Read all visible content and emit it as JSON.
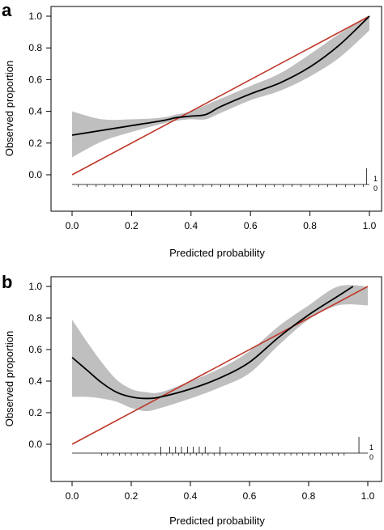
{
  "chart_data": [
    {
      "panel": "a",
      "type": "line",
      "xlabel": "Predicted probability",
      "ylabel": "Observed proportion",
      "xlim": [
        -0.07,
        1.02
      ],
      "ylim": [
        -0.12,
        1.02
      ],
      "xticks": [
        "0.0",
        "0.2",
        "0.4",
        "0.6",
        "0.8",
        "1.0"
      ],
      "yticks": [
        "0.0",
        "0.2",
        "0.4",
        "0.6",
        "0.8",
        "1.0"
      ],
      "reference_line": {
        "x": [
          0,
          1
        ],
        "y": [
          0,
          1
        ],
        "color": "#c0392b"
      },
      "calibration_curve": {
        "x": [
          0.0,
          0.1,
          0.2,
          0.3,
          0.35,
          0.4,
          0.45,
          0.5,
          0.6,
          0.7,
          0.8,
          0.9,
          1.0
        ],
        "y": [
          0.25,
          0.28,
          0.31,
          0.34,
          0.36,
          0.37,
          0.38,
          0.43,
          0.51,
          0.58,
          0.68,
          0.82,
          1.0
        ],
        "color": "#000000"
      },
      "confidence_band": {
        "x": [
          0.0,
          0.1,
          0.2,
          0.3,
          0.35,
          0.4,
          0.45,
          0.5,
          0.6,
          0.7,
          0.8,
          0.9,
          1.0
        ],
        "lower": [
          0.11,
          0.21,
          0.27,
          0.32,
          0.34,
          0.35,
          0.35,
          0.39,
          0.47,
          0.53,
          0.62,
          0.74,
          0.91
        ],
        "upper": [
          0.4,
          0.35,
          0.35,
          0.36,
          0.38,
          0.4,
          0.44,
          0.48,
          0.56,
          0.64,
          0.76,
          0.89,
          1.0
        ],
        "color": "#bfbfbf"
      },
      "rug_labels": [
        "1",
        "0"
      ],
      "rug": {
        "outcome_1_at": [
          0.99
        ],
        "outcome_0_at": [
          0.02,
          0.05,
          0.08,
          0.11,
          0.14,
          0.17,
          0.2,
          0.23,
          0.26,
          0.29,
          0.32,
          0.35,
          0.38,
          0.41,
          0.44,
          0.47,
          0.5,
          0.53,
          0.56,
          0.59,
          0.62,
          0.65,
          0.68,
          0.71,
          0.74,
          0.77,
          0.8,
          0.83,
          0.86,
          0.89,
          0.92,
          0.95,
          0.98
        ]
      }
    },
    {
      "panel": "b",
      "type": "line",
      "xlabel": "Predicted probability",
      "ylabel": "Observed proportion",
      "xlim": [
        -0.07,
        1.02
      ],
      "ylim": [
        -0.12,
        1.02
      ],
      "xticks": [
        "0.0",
        "0.2",
        "0.4",
        "0.6",
        "0.8",
        "1.0"
      ],
      "yticks": [
        "0.0",
        "0.2",
        "0.4",
        "0.6",
        "0.8",
        "1.0"
      ],
      "reference_line": {
        "x": [
          0,
          1
        ],
        "y": [
          0,
          1
        ],
        "color": "#c0392b"
      },
      "calibration_curve": {
        "x": [
          0.0,
          0.05,
          0.1,
          0.15,
          0.2,
          0.25,
          0.3,
          0.4,
          0.5,
          0.6,
          0.7,
          0.8,
          0.9,
          0.95
        ],
        "y": [
          0.55,
          0.47,
          0.39,
          0.33,
          0.3,
          0.29,
          0.3,
          0.35,
          0.42,
          0.52,
          0.68,
          0.82,
          0.94,
          1.0
        ],
        "color": "#000000"
      },
      "confidence_band": {
        "x": [
          0.0,
          0.05,
          0.1,
          0.15,
          0.2,
          0.25,
          0.3,
          0.4,
          0.5,
          0.6,
          0.7,
          0.8,
          0.9,
          1.0
        ],
        "lower": [
          0.3,
          0.3,
          0.29,
          0.27,
          0.23,
          0.21,
          0.23,
          0.29,
          0.36,
          0.45,
          0.63,
          0.79,
          0.88,
          0.88
        ],
        "upper": [
          0.79,
          0.65,
          0.52,
          0.41,
          0.35,
          0.33,
          0.33,
          0.4,
          0.48,
          0.59,
          0.75,
          0.88,
          1.0,
          1.0
        ],
        "color": "#bfbfbf"
      },
      "rug_labels": [
        "1",
        "0"
      ],
      "rug": {
        "outcome_1_at": [
          0.3,
          0.33,
          0.35,
          0.37,
          0.39,
          0.41,
          0.43,
          0.45,
          0.5,
          0.97
        ],
        "outcome_0_at": [
          0.1,
          0.12,
          0.14,
          0.16,
          0.18,
          0.2,
          0.22,
          0.24,
          0.26,
          0.28,
          0.3,
          0.32,
          0.34,
          0.36,
          0.38,
          0.4,
          0.42,
          0.44,
          0.46,
          0.48,
          0.5,
          0.52,
          0.54,
          0.56,
          0.58,
          0.6,
          0.62,
          0.64,
          0.66,
          0.68,
          0.7,
          0.72,
          0.74,
          0.76,
          0.78,
          0.8,
          0.82,
          0.84,
          0.86,
          0.88,
          0.9,
          0.92
        ]
      }
    }
  ]
}
